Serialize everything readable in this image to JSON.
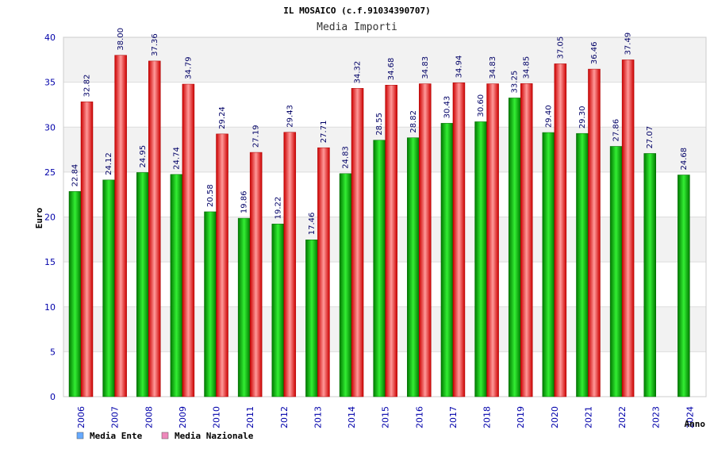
{
  "chart_data": {
    "type": "bar",
    "title": "IL MOSAICO (c.f.91034390707)",
    "subtitle": "Media Importi",
    "ylabel": "Euro",
    "xlabel": "Anno",
    "ylim": [
      0,
      40
    ],
    "yticks": [
      0,
      5,
      10,
      15,
      20,
      25,
      30,
      35,
      40
    ],
    "categories": [
      "2006",
      "2007",
      "2008",
      "2009",
      "2010",
      "2011",
      "2012",
      "2013",
      "2014",
      "2015",
      "2016",
      "2017",
      "2018",
      "2019",
      "2020",
      "2021",
      "2022",
      "2023",
      "2024"
    ],
    "series": [
      {
        "name": "Media Ente",
        "color": "#00aa00",
        "legend_color": "#66aaff",
        "values": [
          22.84,
          24.12,
          24.95,
          24.74,
          20.58,
          19.86,
          19.22,
          17.46,
          24.83,
          28.55,
          28.82,
          30.43,
          30.6,
          33.25,
          29.4,
          29.3,
          27.86,
          27.07,
          24.68
        ],
        "labels": [
          "22.84",
          "24.12",
          "24.95",
          "24.74",
          "20.58",
          "19.86",
          "19.22",
          "17.46",
          "24.83",
          "28.55",
          "28.82",
          "30.43",
          "30.60",
          "33.25",
          "29.40",
          "29.30",
          "27.86",
          "27.07",
          "24.68"
        ]
      },
      {
        "name": "Media Nazionale",
        "color": "#ee2222",
        "legend_color": "#ee88bb",
        "values": [
          32.82,
          38.0,
          37.36,
          34.79,
          29.24,
          27.19,
          29.43,
          27.71,
          34.32,
          34.68,
          34.83,
          34.94,
          34.83,
          34.85,
          37.05,
          36.46,
          37.49,
          null,
          null
        ],
        "labels": [
          "32.82",
          "38.00",
          "37.36",
          "34.79",
          "29.24",
          "27.19",
          "29.43",
          "27.71",
          "34.32",
          "34.68",
          "34.83",
          "34.94",
          "34.83",
          "34.85",
          "37.05",
          "36.46",
          "37.49",
          null,
          null
        ]
      }
    ],
    "grid": true,
    "legend": "bottom-left"
  }
}
